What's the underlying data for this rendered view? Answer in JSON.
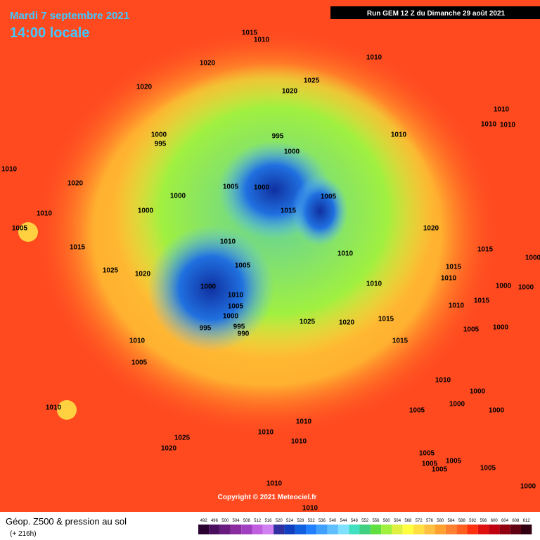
{
  "header": {
    "date": "Mardi 7 septembre 2021",
    "time": "14:00 locale",
    "run": "Run GEM 12 Z du Dimanche 29 août 2021"
  },
  "footer": {
    "title": "Géop. Z500 & pression au sol",
    "lead": "(+ 216h)",
    "copyright": "Copyright © 2021 Meteociel.fr"
  },
  "legend": {
    "values": [
      492,
      496,
      500,
      504,
      508,
      512,
      516,
      520,
      524,
      528,
      532,
      536,
      540,
      544,
      548,
      552,
      556,
      560,
      564,
      568,
      572,
      576,
      580,
      584,
      588,
      592,
      596,
      600,
      604,
      608,
      612
    ],
    "colors": [
      "#2a0030",
      "#4b0f5f",
      "#6a1b7f",
      "#8a2ba0",
      "#a040c0",
      "#c060e0",
      "#d080f0",
      "#3030a0",
      "#1040c0",
      "#1060e0",
      "#2080ff",
      "#40a0ff",
      "#60c0ff",
      "#80e0ff",
      "#40e0c0",
      "#40d080",
      "#60e040",
      "#a0f040",
      "#e0f040",
      "#ffff40",
      "#ffe040",
      "#ffc040",
      "#ffa030",
      "#ff8030",
      "#ff6020",
      "#ff3010",
      "#e01010",
      "#c00010",
      "#900010",
      "#600010",
      "#300010"
    ]
  },
  "isobar_labels": [
    "1015",
    "1010",
    "1010",
    "1020",
    "1025",
    "1020",
    "1020",
    "1010",
    "1010",
    "1010",
    "1010",
    "1000",
    "995",
    "995",
    "1000",
    "1010",
    "1020",
    "1000",
    "1005",
    "1000",
    "1005",
    "1000",
    "1015",
    "1010",
    "1005",
    "1020",
    "1010",
    "1015",
    "1015",
    "1010",
    "1005",
    "1000",
    "1025",
    "1020",
    "1015",
    "1010",
    "1000",
    "1010",
    "1010",
    "1000",
    "1000",
    "1005",
    "1010",
    "1015",
    "1000",
    "1025",
    "1020",
    "1015",
    "995",
    "995",
    "990",
    "1005",
    "1000",
    "1010",
    "1015",
    "1005",
    "1010",
    "1000",
    "1010",
    "1005",
    "1000",
    "1000",
    "1010",
    "1010",
    "1010",
    "1025",
    "1020",
    "1005",
    "1005",
    "1005",
    "1005",
    "1005",
    "1010",
    "1000",
    "1010"
  ]
}
